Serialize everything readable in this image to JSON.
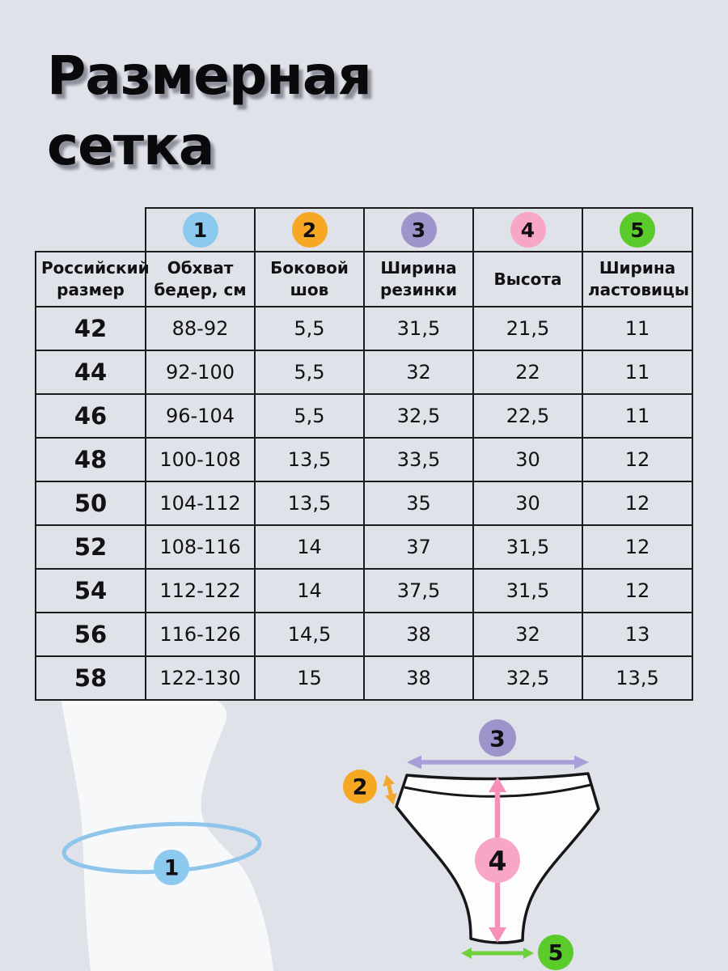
{
  "title": {
    "line1": "Размерная",
    "line2": "сетка"
  },
  "table": {
    "markers": [
      {
        "num": "1",
        "color": "#8BC9EE"
      },
      {
        "num": "2",
        "color": "#F6A825"
      },
      {
        "num": "3",
        "color": "#9E93CB"
      },
      {
        "num": "4",
        "color": "#F8A6C6"
      },
      {
        "num": "5",
        "color": "#5BCB2B"
      }
    ],
    "headers": [
      "Российский размер",
      "Обхват бедер, см",
      "Боковой шов",
      "Ширина резинки",
      "Высота",
      "Ширина ластовицы"
    ],
    "rows": [
      [
        "42",
        "88-92",
        "5,5",
        "31,5",
        "21,5",
        "11"
      ],
      [
        "44",
        "92-100",
        "5,5",
        "32",
        "22",
        "11"
      ],
      [
        "46",
        "96-104",
        "5,5",
        "32,5",
        "22,5",
        "11"
      ],
      [
        "48",
        "100-108",
        "13,5",
        "33,5",
        "30",
        "12"
      ],
      [
        "50",
        "104-112",
        "13,5",
        "35",
        "30",
        "12"
      ],
      [
        "52",
        "108-116",
        "14",
        "37",
        "31,5",
        "12"
      ],
      [
        "54",
        "112-122",
        "14",
        "37,5",
        "31,5",
        "12"
      ],
      [
        "56",
        "116-126",
        "14,5",
        "38",
        "32",
        "13"
      ],
      [
        "58",
        "122-130",
        "15",
        "38",
        "32,5",
        "13,5"
      ]
    ]
  },
  "diagram": {
    "colors": {
      "tape": "#8FC5EA",
      "hip_arrow": "#A89FD9",
      "side_arrow": "#F3A72E",
      "height_arrow": "#F790B9",
      "gusset_arrow": "#70CF3C"
    }
  }
}
